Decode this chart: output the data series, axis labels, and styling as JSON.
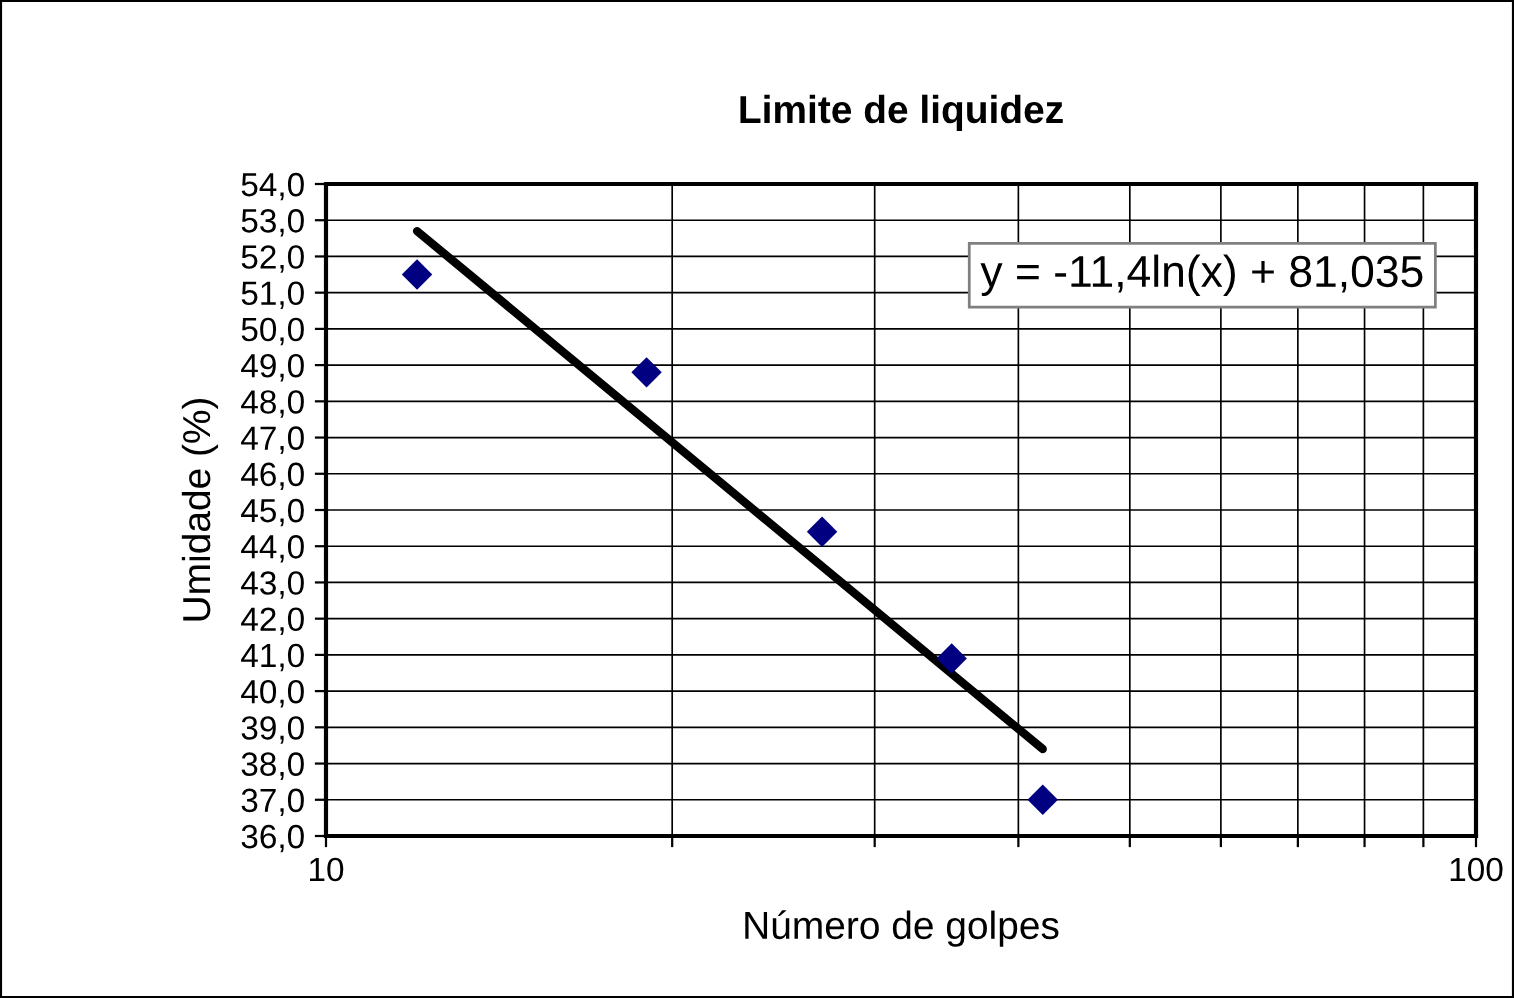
{
  "chart_data": {
    "type": "scatter",
    "title": "Limite de liquidez",
    "xlabel": "Número de golpes",
    "ylabel": "Umidade (%)",
    "log": "x",
    "grid": true,
    "legend": false,
    "xlim": [
      10,
      100
    ],
    "xticks": [
      10,
      {
        "value": 20,
        "label": null
      },
      {
        "value": 30,
        "label": null
      },
      {
        "value": 40,
        "label": null
      },
      {
        "value": 50,
        "label": null
      },
      {
        "value": 60,
        "label": null
      },
      {
        "value": 70,
        "label": null
      },
      {
        "value": 80,
        "label": null
      },
      {
        "value": 90,
        "label": null
      },
      100
    ],
    "ylim": [
      36,
      54
    ],
    "yticks": [
      {
        "value": 36,
        "label": "36,0"
      },
      {
        "value": 37,
        "label": "37,0"
      },
      {
        "value": 38,
        "label": "38,0"
      },
      {
        "value": 39,
        "label": "39,0"
      },
      {
        "value": 40,
        "label": "40,0"
      },
      {
        "value": 41,
        "label": "41,0"
      },
      {
        "value": 42,
        "label": "42,0"
      },
      {
        "value": 43,
        "label": "43,0"
      },
      {
        "value": 44,
        "label": "44,0"
      },
      {
        "value": 45,
        "label": "45,0"
      },
      {
        "value": 46,
        "label": "46,0"
      },
      {
        "value": 47,
        "label": "47,0"
      },
      {
        "value": 48,
        "label": "48,0"
      },
      {
        "value": 49,
        "label": "49,0"
      },
      {
        "value": 50,
        "label": "50,0"
      },
      {
        "value": 51,
        "label": "51,0"
      },
      {
        "value": 52,
        "label": "52,0"
      },
      {
        "value": 53,
        "label": "53,0"
      },
      {
        "value": 54,
        "label": "54,0"
      }
    ],
    "annotations": [
      "y = -11,4ln(x) + 81,035"
    ],
    "series": [
      {
        "color": "#000080",
        "marker": "diamond",
        "x": [
          12,
          19,
          27,
          35,
          42
        ],
        "values": [
          51.5,
          48.8,
          44.4,
          40.9,
          37.0
        ]
      },
      {
        "type": "line",
        "color": "#000000",
        "marker": "none",
        "line_style": "solid",
        "x": [
          12,
          42
        ],
        "values": [
          52.7,
          38.4
        ]
      }
    ]
  }
}
